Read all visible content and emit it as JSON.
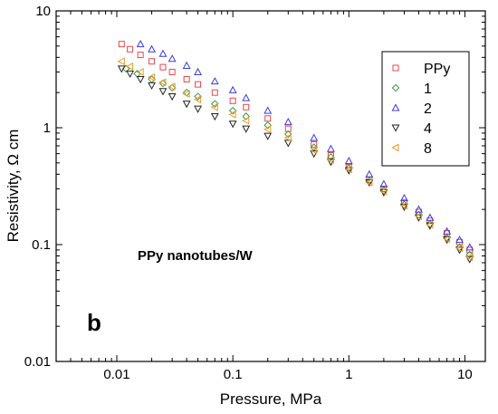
{
  "chart_data": {
    "type": "scatter",
    "title": "",
    "xlabel": "Pressure, MPa",
    "ylabel": "Resistivity, Ω cm",
    "xscale": "log",
    "yscale": "log",
    "xlim": [
      0.003,
      15
    ],
    "ylim": [
      0.01,
      10
    ],
    "xticks": [
      "0.01",
      "0.1",
      "1",
      "10"
    ],
    "yticks": [
      "0.01",
      "0.1",
      "1",
      "10"
    ],
    "grid": false,
    "legend_position": "top-right",
    "annotation": "PPy nanotubes/W",
    "panel_label": "b",
    "series": [
      {
        "name": "PPy",
        "marker": "square",
        "color": "#e8474a",
        "points": [
          [
            0.011,
            5.2
          ],
          [
            0.013,
            4.7
          ],
          [
            0.016,
            4.2
          ],
          [
            0.02,
            3.7
          ],
          [
            0.025,
            3.3
          ],
          [
            0.03,
            3.0
          ],
          [
            0.04,
            2.6
          ],
          [
            0.05,
            2.35
          ],
          [
            0.07,
            2.0
          ],
          [
            0.1,
            1.7
          ],
          [
            0.13,
            1.5
          ],
          [
            0.2,
            1.2
          ],
          [
            0.3,
            0.98
          ],
          [
            0.5,
            0.72
          ],
          [
            0.7,
            0.58
          ],
          [
            1.0,
            0.46
          ],
          [
            1.5,
            0.36
          ],
          [
            2.0,
            0.3
          ],
          [
            3.0,
            0.23
          ],
          [
            4.0,
            0.19
          ],
          [
            5.0,
            0.16
          ],
          [
            7.0,
            0.125
          ],
          [
            9.0,
            0.105
          ],
          [
            11.0,
            0.09
          ]
        ]
      },
      {
        "name": "1",
        "marker": "diamond",
        "color": "#3a9a3a",
        "points": [
          [
            0.012,
            3.2
          ],
          [
            0.015,
            2.9
          ],
          [
            0.02,
            2.6
          ],
          [
            0.025,
            2.4
          ],
          [
            0.03,
            2.2
          ],
          [
            0.04,
            2.0
          ],
          [
            0.05,
            1.85
          ],
          [
            0.07,
            1.6
          ],
          [
            0.1,
            1.4
          ],
          [
            0.13,
            1.25
          ],
          [
            0.2,
            1.05
          ],
          [
            0.3,
            0.88
          ],
          [
            0.5,
            0.68
          ],
          [
            0.7,
            0.56
          ],
          [
            1.0,
            0.45
          ],
          [
            1.5,
            0.35
          ],
          [
            2.0,
            0.29
          ],
          [
            3.0,
            0.22
          ],
          [
            4.0,
            0.18
          ],
          [
            5.0,
            0.15
          ],
          [
            7.0,
            0.115
          ],
          [
            9.0,
            0.095
          ],
          [
            11.0,
            0.082
          ]
        ]
      },
      {
        "name": "2",
        "marker": "triangle-up",
        "color": "#3b3bd6",
        "points": [
          [
            0.016,
            5.2
          ],
          [
            0.02,
            4.7
          ],
          [
            0.025,
            4.3
          ],
          [
            0.03,
            3.9
          ],
          [
            0.04,
            3.4
          ],
          [
            0.05,
            3.0
          ],
          [
            0.07,
            2.5
          ],
          [
            0.1,
            2.1
          ],
          [
            0.13,
            1.8
          ],
          [
            0.2,
            1.4
          ],
          [
            0.3,
            1.12
          ],
          [
            0.5,
            0.82
          ],
          [
            0.7,
            0.66
          ],
          [
            1.0,
            0.52
          ],
          [
            1.5,
            0.4
          ],
          [
            2.0,
            0.33
          ],
          [
            3.0,
            0.25
          ],
          [
            4.0,
            0.2
          ],
          [
            5.0,
            0.17
          ],
          [
            7.0,
            0.13
          ],
          [
            9.0,
            0.11
          ],
          [
            11.0,
            0.095
          ]
        ]
      },
      {
        "name": "4",
        "marker": "triangle-down",
        "color": "#222222",
        "points": [
          [
            0.011,
            3.2
          ],
          [
            0.013,
            2.9
          ],
          [
            0.016,
            2.6
          ],
          [
            0.02,
            2.3
          ],
          [
            0.025,
            2.05
          ],
          [
            0.03,
            1.85
          ],
          [
            0.04,
            1.6
          ],
          [
            0.05,
            1.45
          ],
          [
            0.07,
            1.25
          ],
          [
            0.1,
            1.08
          ],
          [
            0.13,
            0.98
          ],
          [
            0.2,
            0.85
          ],
          [
            0.3,
            0.74
          ],
          [
            0.5,
            0.6
          ],
          [
            0.7,
            0.51
          ],
          [
            1.0,
            0.43
          ],
          [
            1.5,
            0.34
          ],
          [
            2.0,
            0.28
          ],
          [
            3.0,
            0.21
          ],
          [
            4.0,
            0.17
          ],
          [
            5.0,
            0.145
          ],
          [
            7.0,
            0.11
          ],
          [
            9.0,
            0.09
          ],
          [
            11.0,
            0.075
          ]
        ]
      },
      {
        "name": "8",
        "marker": "triangle-left",
        "color": "#e89a2c",
        "points": [
          [
            0.011,
            3.7
          ],
          [
            0.013,
            3.35
          ],
          [
            0.016,
            3.0
          ],
          [
            0.02,
            2.7
          ],
          [
            0.025,
            2.45
          ],
          [
            0.03,
            2.25
          ],
          [
            0.04,
            1.95
          ],
          [
            0.05,
            1.75
          ],
          [
            0.07,
            1.5
          ],
          [
            0.1,
            1.3
          ],
          [
            0.13,
            1.15
          ],
          [
            0.2,
            0.97
          ],
          [
            0.3,
            0.82
          ],
          [
            0.5,
            0.64
          ],
          [
            0.7,
            0.53
          ],
          [
            1.0,
            0.44
          ],
          [
            1.5,
            0.34
          ],
          [
            2.0,
            0.285
          ],
          [
            3.0,
            0.215
          ],
          [
            4.0,
            0.175
          ],
          [
            5.0,
            0.148
          ],
          [
            7.0,
            0.112
          ],
          [
            9.0,
            0.093
          ],
          [
            11.0,
            0.078
          ]
        ]
      }
    ]
  }
}
